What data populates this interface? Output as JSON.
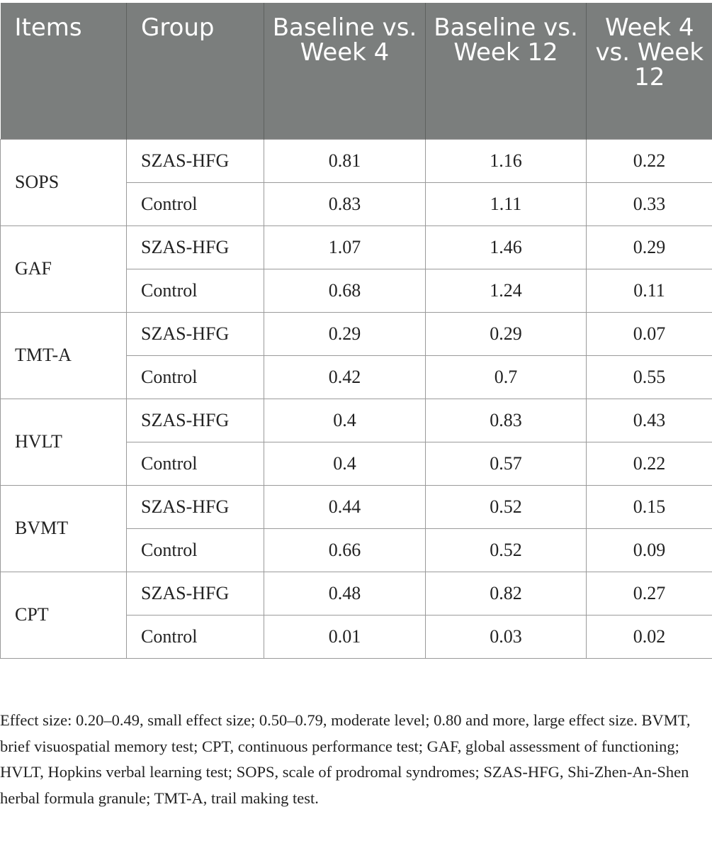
{
  "table": {
    "headers": [
      "Items",
      "Group",
      "Baseline vs. Week 4",
      "Baseline vs. Week 12",
      "Week 4 vs. Week 12"
    ],
    "rows": [
      {
        "item": "SOPS",
        "groups": [
          {
            "group": "SZAS-HFG",
            "values": [
              "0.81",
              "1.16",
              "0.22"
            ]
          },
          {
            "group": "Control",
            "values": [
              "0.83",
              "1.11",
              "0.33"
            ]
          }
        ]
      },
      {
        "item": "GAF",
        "groups": [
          {
            "group": "SZAS-HFG",
            "values": [
              "1.07",
              "1.46",
              "0.29"
            ]
          },
          {
            "group": "Control",
            "values": [
              "0.68",
              "1.24",
              "0.11"
            ]
          }
        ]
      },
      {
        "item": "TMT-A",
        "groups": [
          {
            "group": "SZAS-HFG",
            "values": [
              "0.29",
              "0.29",
              "0.07"
            ]
          },
          {
            "group": "Control",
            "values": [
              "0.42",
              "0.7",
              "0.55"
            ]
          }
        ]
      },
      {
        "item": "HVLT",
        "groups": [
          {
            "group": "SZAS-HFG",
            "values": [
              "0.4",
              "0.83",
              "0.43"
            ]
          },
          {
            "group": "Control",
            "values": [
              "0.4",
              "0.57",
              "0.22"
            ]
          }
        ]
      },
      {
        "item": "BVMT",
        "groups": [
          {
            "group": "SZAS-HFG",
            "values": [
              "0.44",
              "0.52",
              "0.15"
            ]
          },
          {
            "group": "Control",
            "values": [
              "0.66",
              "0.52",
              "0.09"
            ]
          }
        ]
      },
      {
        "item": "CPT",
        "groups": [
          {
            "group": "SZAS-HFG",
            "values": [
              "0.48",
              "0.82",
              "0.27"
            ]
          },
          {
            "group": "Control",
            "values": [
              "0.01",
              "0.03",
              "0.02"
            ]
          }
        ]
      }
    ]
  },
  "footnote": "Effect size: 0.20–0.49, small effect size; 0.50–0.79, moderate level; 0.80 and more, large effect size. BVMT, brief visuospatial memory test; CPT, continuous performance test; GAF, global assessment of functioning; HVLT, Hopkins verbal learning test; SOPS, scale of prodromal syndromes; SZAS-HFG, Shi-Zhen-An-Shen herbal formula granule; TMT-A, trail making test.",
  "colors": {
    "header_bg": "#7b7e7d",
    "header_text": "#ffffff",
    "grid_line": "#9a9a9a",
    "body_text": "#222222"
  }
}
